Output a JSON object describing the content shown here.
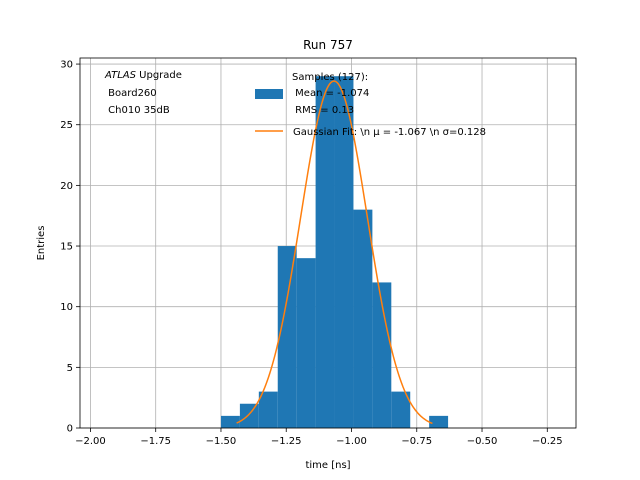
{
  "chart_data": {
    "type": "bar",
    "title": "Run 757",
    "xlabel": "time [ns]",
    "ylabel": "Entries",
    "xlim": [
      -2.04,
      -0.14
    ],
    "ylim": [
      0,
      30.5
    ],
    "grid": true,
    "x_ticks": [
      -2.0,
      -1.75,
      -1.5,
      -1.25,
      -1.0,
      -0.75,
      -0.5,
      -0.25
    ],
    "x_tick_labels": [
      "−2.00",
      "−1.75",
      "−1.50",
      "−1.25",
      "−1.00",
      "−0.75",
      "−0.50",
      "−0.25"
    ],
    "y_ticks": [
      0,
      5,
      10,
      15,
      20,
      25,
      30
    ],
    "y_tick_labels": [
      "0",
      "5",
      "10",
      "15",
      "20",
      "25",
      "30"
    ],
    "bin_edges": [
      -1.5,
      -1.4275,
      -1.355,
      -1.2825,
      -1.21,
      -1.1375,
      -1.065,
      -0.9925,
      -0.92,
      -0.8475,
      -0.775,
      -0.7025,
      -0.63
    ],
    "series": [
      {
        "kind": "histogram",
        "color": "#1f77b4",
        "counts": [
          1,
          2,
          3,
          15,
          14,
          29,
          29,
          18,
          12,
          3,
          0,
          1
        ]
      },
      {
        "kind": "gaussian",
        "color": "#ff7f0e",
        "mu": -1.067,
        "sigma": 0.128,
        "amplitude": 28.6,
        "x_range": [
          -1.44,
          -0.69
        ]
      }
    ],
    "legend": {
      "placement": "top-center",
      "entries": [
        {
          "label_lines": [
            "Samples (127):",
            " Mean = -1.074",
            " RMS = 0.13"
          ],
          "marker": "patch",
          "color": "#1f77b4"
        },
        {
          "label_lines": [
            "Gaussian Fit: \\n μ = -1.067 \\n σ=0.128"
          ],
          "marker": "line",
          "color": "#ff7f0e"
        }
      ]
    },
    "annotation": {
      "atlas": "ATLAS",
      "upgrade": " Upgrade",
      "line2": " Board260",
      "line3": " Ch010 35dB"
    }
  }
}
